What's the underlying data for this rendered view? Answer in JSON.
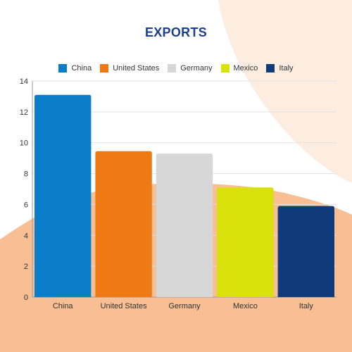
{
  "chart_data": {
    "type": "bar",
    "title": "EXPORTS",
    "categories": [
      "China",
      "United States",
      "Germany",
      "Mexico",
      "Italy"
    ],
    "values": [
      13.1,
      9.45,
      9.3,
      7.1,
      5.9
    ],
    "colors": [
      "#0a7dc9",
      "#ee7a15",
      "#d7d7d7",
      "#d9e10c",
      "#103a7a"
    ],
    "xlabel": "",
    "ylabel": "",
    "ylim": [
      0,
      14
    ],
    "yticks": [
      0,
      2,
      4,
      6,
      8,
      10,
      12,
      14
    ],
    "grid": true,
    "legend_position": "top-center"
  },
  "theme": {
    "title_color": "#1c3f8f",
    "background_top": "#fdece0",
    "background_bottom": "#f7bf93"
  }
}
